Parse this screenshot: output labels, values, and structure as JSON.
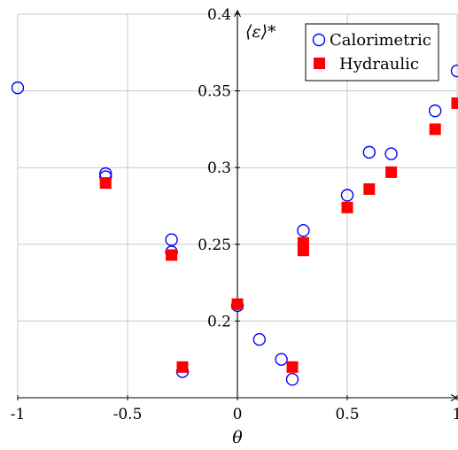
{
  "chart_data": {
    "type": "scatter",
    "xlabel": "θ",
    "ylabel": "⟨ε⟩*",
    "xlim": [
      -1,
      1
    ],
    "ylim": [
      0.15,
      0.4
    ],
    "xticks": [
      -1,
      -0.5,
      0,
      0.5,
      1
    ],
    "xtick_labels": [
      "-1",
      "-0.5",
      "0",
      "0.5",
      "1"
    ],
    "yticks": [
      0.2,
      0.25,
      0.3,
      0.35,
      0.4
    ],
    "ytick_labels": [
      "0.2",
      "0.25",
      "0.3",
      "0.35",
      "0.4"
    ],
    "grid": true,
    "legend_position": "top-right",
    "series": [
      {
        "name": "Calorimetric",
        "marker": "open-circle",
        "color": "#0000ff",
        "points": [
          [
            -1.0,
            0.352
          ],
          [
            -0.6,
            0.296
          ],
          [
            -0.6,
            0.294
          ],
          [
            -0.3,
            0.253
          ],
          [
            -0.3,
            0.245
          ],
          [
            -0.25,
            0.167
          ],
          [
            0.0,
            0.21
          ],
          [
            0.1,
            0.188
          ],
          [
            0.2,
            0.175
          ],
          [
            0.25,
            0.162
          ],
          [
            0.3,
            0.259
          ],
          [
            0.5,
            0.282
          ],
          [
            0.6,
            0.31
          ],
          [
            0.7,
            0.309
          ],
          [
            0.9,
            0.337
          ],
          [
            1.0,
            0.363
          ]
        ]
      },
      {
        "name": "Hydraulic",
        "marker": "filled-square",
        "color": "#ff0000",
        "points": [
          [
            -0.6,
            0.29
          ],
          [
            -0.3,
            0.243
          ],
          [
            -0.25,
            0.17
          ],
          [
            0.0,
            0.211
          ],
          [
            0.25,
            0.17
          ],
          [
            0.3,
            0.251
          ],
          [
            0.3,
            0.246
          ],
          [
            0.5,
            0.274
          ],
          [
            0.6,
            0.286
          ],
          [
            0.7,
            0.297
          ],
          [
            0.9,
            0.325
          ],
          [
            1.0,
            0.342
          ]
        ]
      }
    ]
  }
}
